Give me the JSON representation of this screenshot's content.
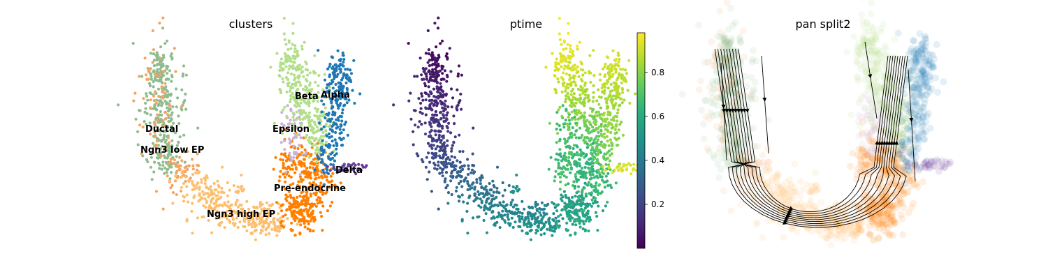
{
  "chart_data": [
    {
      "type": "scatter",
      "title": "clusters",
      "xlabel": "",
      "ylabel": "",
      "legend": "on data",
      "clusters": [
        {
          "name": "Ductal",
          "color": "#8fbc8f"
        },
        {
          "name": "Ngn3 low EP",
          "color": "#f4a460"
        },
        {
          "name": "Ngn3 high EP",
          "color": "#fdbf6f"
        },
        {
          "name": "Pre-endocrine",
          "color": "#ff7f00"
        },
        {
          "name": "Beta",
          "color": "#b2df8a"
        },
        {
          "name": "Alpha",
          "color": "#1f78b4"
        },
        {
          "name": "Delta",
          "color": "#6a3d9a"
        },
        {
          "name": "Epsilon",
          "color": "#cab2d6"
        }
      ]
    },
    {
      "type": "scatter",
      "title": "ptime",
      "colorbar": {
        "cmap": "viridis",
        "min": 0.0,
        "max": 0.98,
        "ticks": [
          0.2,
          0.4,
          0.6,
          0.8
        ]
      }
    },
    {
      "type": "scatter",
      "title": "pan split2",
      "overlay": "velocity streamlines"
    }
  ]
}
